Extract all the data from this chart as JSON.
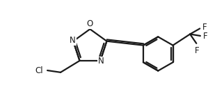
{
  "background_color": "#ffffff",
  "line_color": "#1a1a1a",
  "line_width": 1.6,
  "font_size": 8.5,
  "figsize": [
    3.22,
    1.42
  ],
  "dpi": 100,
  "xlim": [
    0.5,
    9.5
  ],
  "ylim": [
    0.8,
    4.8
  ]
}
